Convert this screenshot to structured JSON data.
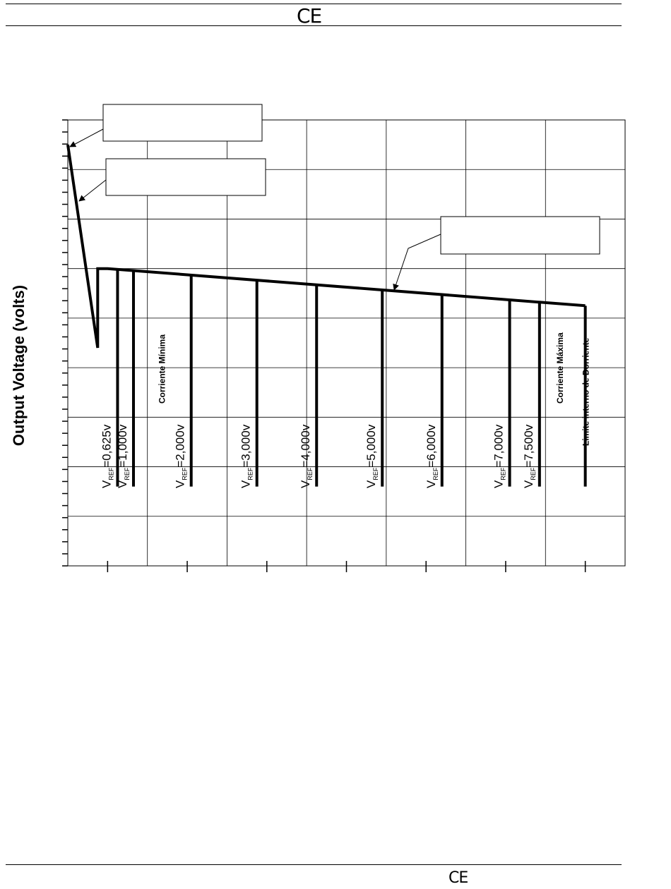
{
  "header": {
    "mark": "CE"
  },
  "footer": {
    "mark": "CE"
  },
  "chart_data": {
    "type": "line",
    "ylabel": "Output Voltage (volts)",
    "xlabel": "",
    "grid": true,
    "callouts": [
      "",
      "",
      ""
    ],
    "series": [
      {
        "points": [
          [
            0.0,
            8.5
          ],
          [
            0.75,
            4.4
          ],
          [
            0.75,
            6.0
          ],
          [
            1.0,
            6.0
          ],
          [
            13.0,
            5.25
          ]
        ]
      }
    ],
    "drops": [
      {
        "x": 1.25,
        "label": "=0,625v"
      },
      {
        "x": 1.65,
        "label": "=1,000v"
      },
      {
        "x": 3.1,
        "label": "=2,000v"
      },
      {
        "x": 4.75,
        "label": "=3,000v"
      },
      {
        "x": 6.25,
        "label": "=4,000v"
      },
      {
        "x": 7.9,
        "label": "=5,000v"
      },
      {
        "x": 9.4,
        "label": "=6,000v"
      },
      {
        "x": 11.1,
        "label": "=7,000v"
      },
      {
        "x": 11.85,
        "label": "=7,500v"
      },
      {
        "x": 13.0,
        "label": ""
      }
    ],
    "vref_symbol": "V",
    "vref_subscript": "REF",
    "drop_bottom": 1.6,
    "annotations": [
      {
        "text": "Corriente Mínima",
        "x": 2.35
      },
      {
        "text": "Corriente Máxima",
        "x": 12.35
      },
      {
        "text": "Limite interno de Dorriente",
        "x": 13.0
      }
    ],
    "xlim": [
      0,
      14
    ],
    "ylim": [
      0,
      9
    ]
  }
}
